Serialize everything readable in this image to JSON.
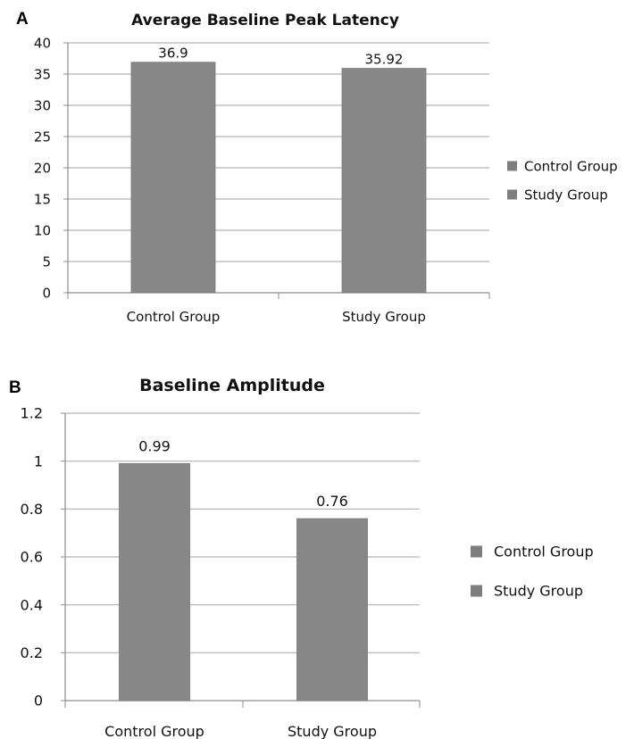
{
  "colors": {
    "bar": "#878787",
    "bar_border": "#787878",
    "grid": "#b3b3b3",
    "axis": "#8c8c8c",
    "legend_swatch": "#7e7e7e"
  },
  "panels": [
    {
      "letter": "A"
    },
    {
      "letter": "B"
    }
  ],
  "chart_data": [
    {
      "type": "bar",
      "title": "Average Baseline Peak Latency",
      "categories": [
        "Control Group",
        "Study Group"
      ],
      "values": [
        36.9,
        35.92
      ],
      "data_labels": [
        "36.9",
        "35.92"
      ],
      "ylim": [
        0,
        40
      ],
      "yticks": [
        0,
        5,
        10,
        15,
        20,
        25,
        30,
        35,
        40
      ],
      "ytick_labels": [
        "0",
        "5",
        "10",
        "15",
        "20",
        "25",
        "30",
        "35",
        "40"
      ],
      "grid": true,
      "legend": [
        "Control Group",
        "Study Group"
      ],
      "legend_position": "right",
      "xlabel": "",
      "ylabel": ""
    },
    {
      "type": "bar",
      "title": "Baseline Amplitude",
      "categories": [
        "Control Group",
        "Study Group"
      ],
      "values": [
        0.99,
        0.76
      ],
      "data_labels": [
        "0.99",
        "0.76"
      ],
      "ylim": [
        0,
        1.2
      ],
      "yticks": [
        0,
        0.2,
        0.4,
        0.6,
        0.8,
        1,
        1.2
      ],
      "ytick_labels": [
        "0",
        "0.2",
        "0.4",
        "0.6",
        "0.8",
        "1",
        "1.2"
      ],
      "grid": true,
      "legend": [
        "Control Group",
        "Study Group"
      ],
      "legend_position": "right",
      "xlabel": "",
      "ylabel": ""
    }
  ]
}
